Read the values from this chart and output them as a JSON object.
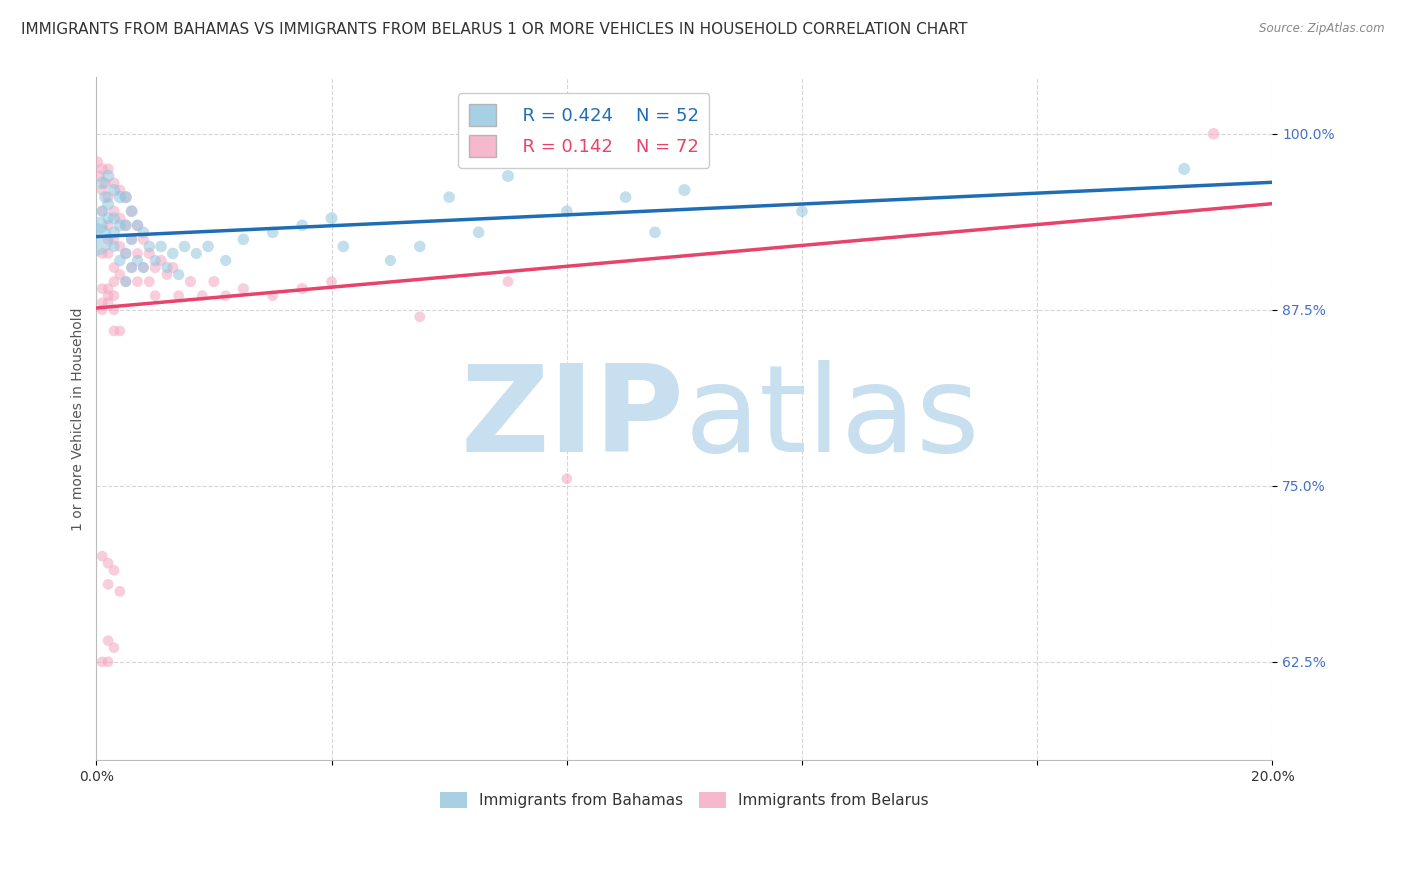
{
  "title": "IMMIGRANTS FROM BAHAMAS VS IMMIGRANTS FROM BELARUS 1 OR MORE VEHICLES IN HOUSEHOLD CORRELATION CHART",
  "source": "Source: ZipAtlas.com",
  "ylabel": "1 or more Vehicles in Household",
  "xlim": [
    0.0,
    0.2
  ],
  "ylim": [
    0.555,
    1.04
  ],
  "yticks": [
    0.625,
    0.75,
    0.875,
    1.0
  ],
  "ytick_labels": [
    "62.5%",
    "75.0%",
    "87.5%",
    "100.0%"
  ],
  "xticks": [
    0.0,
    0.04,
    0.08,
    0.12,
    0.16,
    0.2
  ],
  "xtick_labels": [
    "0.0%",
    "",
    "",
    "",
    "",
    "20.0%"
  ],
  "legend_R_bahamas": "R = 0.424",
  "legend_N_bahamas": "N = 52",
  "legend_R_belarus": "R = 0.142",
  "legend_N_belarus": "N = 72",
  "color_bahamas": "#92c5de",
  "color_belarus": "#f4a6c0",
  "line_color_bahamas": "#1f6eb5",
  "line_color_belarus": "#e8436a",
  "background_color": "#ffffff",
  "watermark_zip_color": "#c8dff0",
  "watermark_atlas_color": "#c8dff0",
  "title_fontsize": 11,
  "axis_label_fontsize": 10,
  "tick_fontsize": 10,
  "legend_fontsize": 13,
  "bahamas_x": [
    0.0005,
    0.001,
    0.001,
    0.0015,
    0.002,
    0.002,
    0.002,
    0.003,
    0.003,
    0.003,
    0.003,
    0.004,
    0.004,
    0.004,
    0.005,
    0.005,
    0.005,
    0.005,
    0.006,
    0.006,
    0.006,
    0.007,
    0.007,
    0.008,
    0.008,
    0.009,
    0.01,
    0.011,
    0.012,
    0.013,
    0.014,
    0.015,
    0.017,
    0.019,
    0.022,
    0.025,
    0.03,
    0.035,
    0.04,
    0.042,
    0.05,
    0.055,
    0.06,
    0.065,
    0.07,
    0.08,
    0.09,
    0.095,
    0.1,
    0.12,
    0.185,
    0.0
  ],
  "bahamas_y": [
    0.935,
    0.965,
    0.945,
    0.955,
    0.97,
    0.95,
    0.94,
    0.96,
    0.94,
    0.93,
    0.92,
    0.955,
    0.935,
    0.91,
    0.955,
    0.935,
    0.915,
    0.895,
    0.945,
    0.925,
    0.905,
    0.935,
    0.91,
    0.93,
    0.905,
    0.92,
    0.91,
    0.92,
    0.905,
    0.915,
    0.9,
    0.92,
    0.915,
    0.92,
    0.91,
    0.925,
    0.93,
    0.935,
    0.94,
    0.92,
    0.91,
    0.92,
    0.955,
    0.93,
    0.97,
    0.945,
    0.955,
    0.93,
    0.96,
    0.945,
    0.975,
    0.925
  ],
  "bahamas_size": [
    150,
    80,
    70,
    75,
    80,
    75,
    70,
    80,
    75,
    70,
    65,
    80,
    75,
    70,
    80,
    75,
    70,
    65,
    75,
    70,
    65,
    70,
    65,
    70,
    65,
    70,
    65,
    70,
    65,
    70,
    65,
    70,
    65,
    70,
    65,
    70,
    70,
    70,
    75,
    70,
    65,
    70,
    70,
    70,
    75,
    70,
    70,
    70,
    75,
    70,
    75,
    550
  ],
  "belarus_x": [
    0.0002,
    0.0005,
    0.001,
    0.001,
    0.001,
    0.0015,
    0.002,
    0.002,
    0.002,
    0.002,
    0.003,
    0.003,
    0.003,
    0.003,
    0.003,
    0.004,
    0.004,
    0.004,
    0.004,
    0.005,
    0.005,
    0.005,
    0.005,
    0.006,
    0.006,
    0.006,
    0.007,
    0.007,
    0.007,
    0.008,
    0.008,
    0.009,
    0.009,
    0.01,
    0.01,
    0.011,
    0.012,
    0.013,
    0.014,
    0.016,
    0.018,
    0.02,
    0.022,
    0.025,
    0.03,
    0.035,
    0.002,
    0.003,
    0.004,
    0.001,
    0.002,
    0.003,
    0.001,
    0.002,
    0.001,
    0.002,
    0.003,
    0.004,
    0.002,
    0.003,
    0.001,
    0.002,
    0.001,
    0.003,
    0.002,
    0.001,
    0.002,
    0.04,
    0.055,
    0.07,
    0.08,
    0.19
  ],
  "belarus_y": [
    0.98,
    0.97,
    0.975,
    0.96,
    0.945,
    0.965,
    0.975,
    0.955,
    0.935,
    0.915,
    0.965,
    0.945,
    0.925,
    0.905,
    0.885,
    0.96,
    0.94,
    0.92,
    0.9,
    0.955,
    0.935,
    0.915,
    0.895,
    0.945,
    0.925,
    0.905,
    0.935,
    0.915,
    0.895,
    0.925,
    0.905,
    0.915,
    0.895,
    0.905,
    0.885,
    0.91,
    0.9,
    0.905,
    0.885,
    0.895,
    0.885,
    0.895,
    0.885,
    0.89,
    0.885,
    0.89,
    0.89,
    0.895,
    0.86,
    0.875,
    0.885,
    0.875,
    0.89,
    0.88,
    0.7,
    0.695,
    0.69,
    0.675,
    0.64,
    0.635,
    0.625,
    0.625,
    0.88,
    0.86,
    0.925,
    0.915,
    0.68,
    0.895,
    0.87,
    0.895,
    0.755,
    1.0
  ],
  "belarus_size": [
    65,
    65,
    65,
    65,
    60,
    65,
    65,
    65,
    60,
    60,
    65,
    65,
    60,
    60,
    60,
    65,
    65,
    60,
    60,
    65,
    65,
    60,
    60,
    65,
    60,
    60,
    65,
    60,
    60,
    65,
    60,
    65,
    60,
    65,
    60,
    65,
    60,
    65,
    60,
    65,
    60,
    65,
    60,
    65,
    60,
    65,
    60,
    60,
    60,
    60,
    60,
    60,
    60,
    60,
    60,
    60,
    60,
    60,
    60,
    60,
    60,
    60,
    60,
    60,
    60,
    60,
    60,
    60,
    60,
    60,
    60,
    70
  ]
}
